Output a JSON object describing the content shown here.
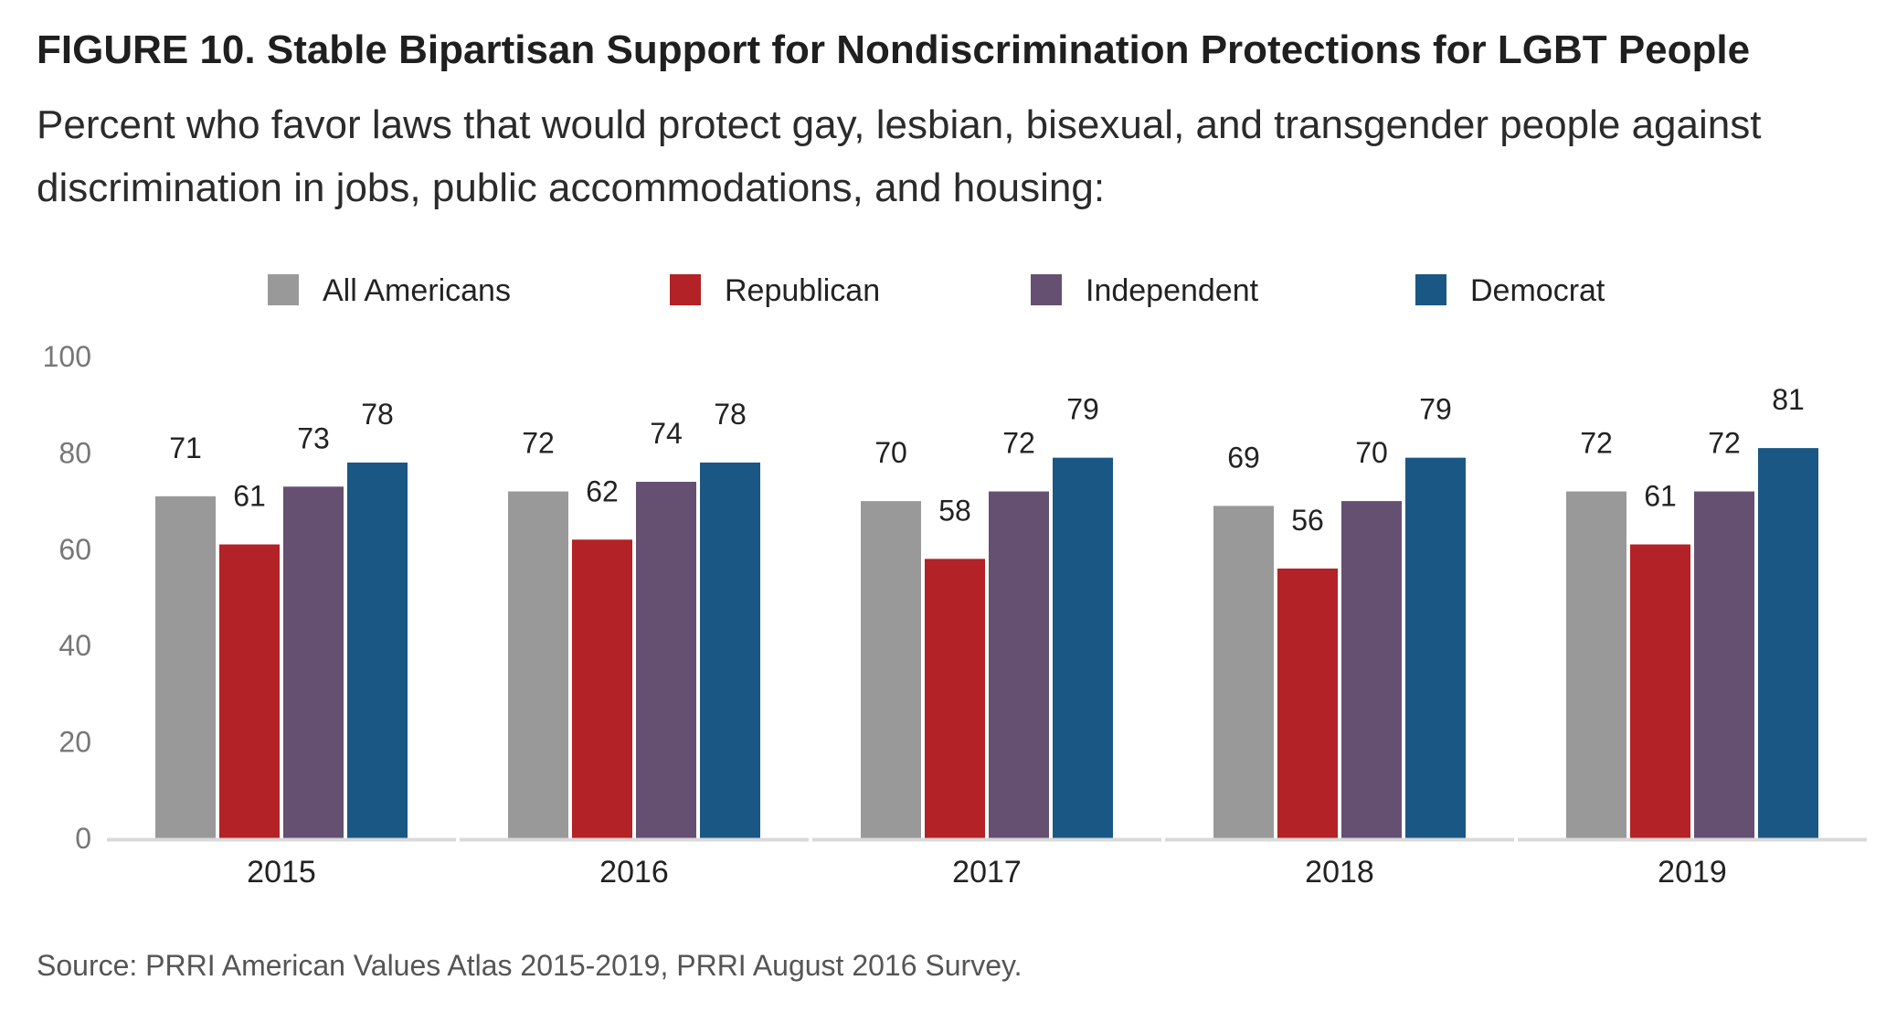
{
  "title": "FIGURE 10.  Stable Bipartisan Support for Nondiscrimination Protections for LGBT People",
  "subtitle": "Percent who favor laws that would protect gay, lesbian, bisexual, and transgender people against discrimination in jobs, public accommodations, and housing:",
  "source": "Source: PRRI American Values Atlas 2015-2019, PRRI August 2016 Survey.",
  "chart_data": {
    "type": "bar",
    "categories": [
      "2015",
      "2016",
      "2017",
      "2018",
      "2019"
    ],
    "series": [
      {
        "name": "All Americans",
        "color": "#999999",
        "values": [
          71,
          72,
          70,
          69,
          72
        ]
      },
      {
        "name": "Republican",
        "color": "#b22226",
        "values": [
          61,
          62,
          58,
          56,
          61
        ]
      },
      {
        "name": "Independent",
        "color": "#655072",
        "values": [
          73,
          74,
          72,
          70,
          72
        ]
      },
      {
        "name": "Democrat",
        "color": "#1a5784",
        "values": [
          78,
          78,
          79,
          79,
          81
        ]
      }
    ],
    "ylim": [
      0,
      100
    ],
    "yticks": [
      0,
      20,
      40,
      60,
      80,
      100
    ],
    "legend": "top-center",
    "grid": false
  }
}
